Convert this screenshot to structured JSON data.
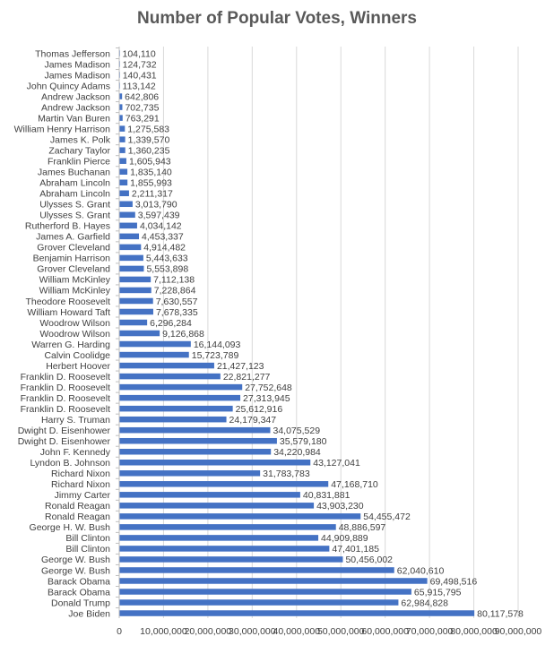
{
  "chart_data": {
    "type": "bar",
    "orientation": "horizontal",
    "title": "Number of Popular Votes, Winners",
    "xlabel": "",
    "ylabel": "",
    "xlim": [
      0,
      90000000
    ],
    "xticks": [
      0,
      10000000,
      20000000,
      30000000,
      40000000,
      50000000,
      60000000,
      70000000,
      80000000,
      90000000
    ],
    "xtick_labels": [
      "0",
      "10,000,000",
      "20,000,000",
      "30,000,000",
      "40,000,000",
      "50,000,000",
      "60,000,000",
      "70,000,000",
      "80,000,000",
      "90,000,000"
    ],
    "grid": "vertical",
    "legend": "none",
    "bar_color": "#4472C4",
    "categories": [
      "Thomas Jefferson",
      "James Madison",
      "James Madison",
      "John Quincy Adams",
      "Andrew Jackson",
      "Andrew Jackson",
      "Martin Van Buren",
      "William Henry Harrison",
      "James K. Polk",
      "Zachary Taylor",
      "Franklin Pierce",
      "James Buchanan",
      "Abraham Lincoln",
      "Abraham Lincoln",
      "Ulysses S. Grant",
      "Ulysses S. Grant",
      "Rutherford B. Hayes",
      "James A. Garfield",
      "Grover Cleveland",
      "Benjamin Harrison",
      "Grover Cleveland",
      "William McKinley",
      "William McKinley",
      "Theodore Roosevelt",
      "William Howard Taft",
      "Woodrow Wilson",
      "Woodrow Wilson",
      "Warren G. Harding",
      "Calvin Coolidge",
      "Herbert Hoover",
      "Franklin D. Roosevelt",
      "Franklin D. Roosevelt",
      "Franklin D. Roosevelt",
      "Franklin D. Roosevelt",
      "Harry S. Truman",
      "Dwight D. Eisenhower",
      "Dwight D. Eisenhower",
      "John F. Kennedy",
      "Lyndon B. Johnson",
      "Richard Nixon",
      "Richard Nixon",
      "Jimmy Carter",
      "Ronald Reagan",
      "Ronald Reagan",
      "George H. W. Bush",
      "Bill Clinton",
      "Bill Clinton",
      "George W. Bush",
      "George W. Bush",
      "Barack Obama",
      "Barack Obama",
      "Donald Trump",
      "Joe Biden"
    ],
    "values": [
      104110,
      124732,
      140431,
      113142,
      642806,
      702735,
      763291,
      1275583,
      1339570,
      1360235,
      1605943,
      1835140,
      1855993,
      2211317,
      3013790,
      3597439,
      4034142,
      4453337,
      4914482,
      5443633,
      5553898,
      7112138,
      7228864,
      7630557,
      7678335,
      6296284,
      9126868,
      16144093,
      15723789,
      21427123,
      22821277,
      27752648,
      27313945,
      25612916,
      24179347,
      34075529,
      35579180,
      34220984,
      43127041,
      31783783,
      47168710,
      40831881,
      43903230,
      54455472,
      48886597,
      44909889,
      47401185,
      50456002,
      62040610,
      69498516,
      65915795,
      62984828,
      80117578
    ],
    "value_labels": [
      "104,110",
      "124,732",
      "140,431",
      "113,142",
      "642,806",
      "702,735",
      "763,291",
      "1,275,583",
      "1,339,570",
      "1,360,235",
      "1,605,943",
      "1,835,140",
      "1,855,993",
      "2,211,317",
      "3,013,790",
      "3,597,439",
      "4,034,142",
      "4,453,337",
      "4,914,482",
      "5,443,633",
      "5,553,898",
      "7,112,138",
      "7,228,864",
      "7,630,557",
      "7,678,335",
      "6,296,284",
      "9,126,868",
      "16,144,093",
      "15,723,789",
      "21,427,123",
      "22,821,277",
      "27,752,648",
      "27,313,945",
      "25,612,916",
      "24,179,347",
      "34,075,529",
      "35,579,180",
      "34,220,984",
      "43,127,041",
      "31,783,783",
      "47,168,710",
      "40,831,881",
      "43,903,230",
      "54,455,472",
      "48,886,597",
      "44,909,889",
      "47,401,185",
      "50,456,002",
      "62,040,610",
      "69,498,516",
      "65,915,795",
      "62,984,828",
      "80,117,578"
    ]
  }
}
